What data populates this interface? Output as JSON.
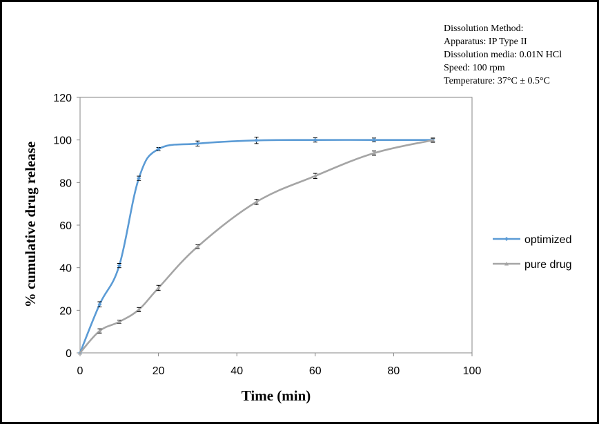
{
  "annotation": {
    "lines": [
      "Dissolution Method:",
      "Apparatus: IP Type II",
      "Dissolution media: 0.01N HCl",
      "Speed: 100 rpm",
      "Temperature: 37°C ± 0.5°C"
    ]
  },
  "chart_data": {
    "type": "line",
    "title": "",
    "xlabel": "Time (min)",
    "ylabel": "% cumulative drug release",
    "xlim": [
      0,
      100
    ],
    "ylim": [
      0,
      120
    ],
    "xticks": [
      0,
      20,
      40,
      60,
      80,
      100
    ],
    "yticks": [
      0,
      20,
      40,
      60,
      80,
      100,
      120
    ],
    "grid": false,
    "legend_position": "right",
    "series": [
      {
        "name": "optimized",
        "color": "#5b9bd5",
        "marker": "diamond",
        "x": [
          0,
          5,
          10,
          15,
          20,
          30,
          45,
          60,
          75,
          90
        ],
        "y": [
          0,
          22.8,
          41.0,
          82.0,
          95.7,
          98.3,
          99.8,
          100.0,
          100.0,
          100.0
        ],
        "err": [
          0,
          1.2,
          1.0,
          1.0,
          0.8,
          1.2,
          1.5,
          1.0,
          0.9,
          0.8
        ]
      },
      {
        "name": "pure drug",
        "color": "#a5a5a5",
        "marker": "triangle",
        "x": [
          0,
          5,
          10,
          15,
          20,
          30,
          45,
          60,
          75,
          90
        ],
        "y": [
          0,
          10.3,
          14.6,
          20.3,
          30.5,
          49.9,
          70.9,
          83.1,
          93.8,
          99.9
        ],
        "err": [
          0,
          1.0,
          0.8,
          1.0,
          1.2,
          0.9,
          1.2,
          1.2,
          1.0,
          1.0
        ]
      }
    ]
  }
}
